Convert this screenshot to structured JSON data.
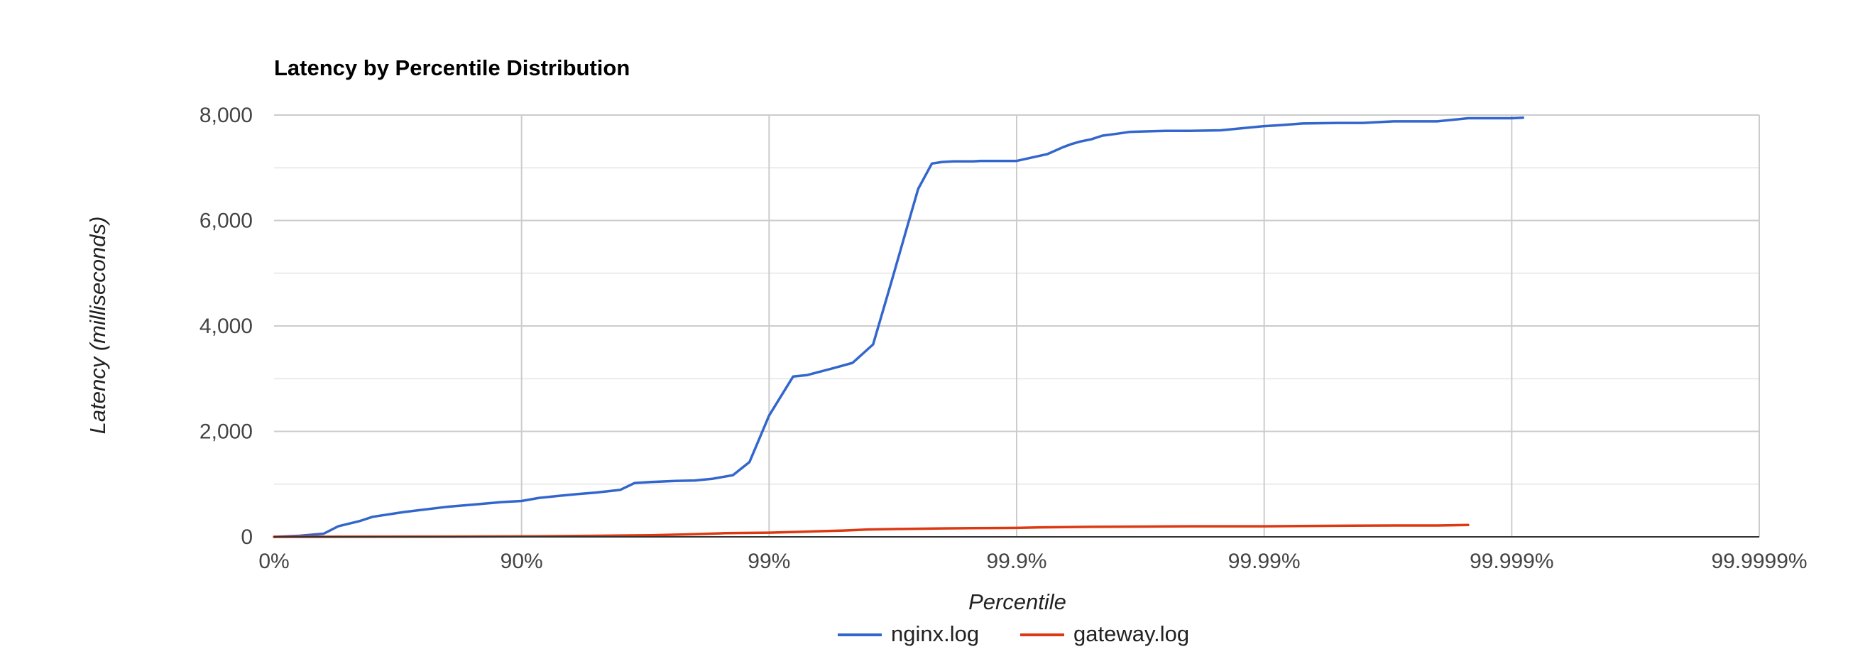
{
  "chart_data": {
    "type": "line",
    "title": "Latency by Percentile Distribution",
    "xlabel": "Percentile",
    "ylabel": "Latency (milliseconds)",
    "x_scale": "log-nines",
    "x_tick_labels": [
      "0%",
      "90%",
      "99%",
      "99.9%",
      "99.99%",
      "99.999%",
      "99.9999%"
    ],
    "x_tick_values": [
      0,
      90,
      99,
      99.9,
      99.99,
      99.999,
      99.9999
    ],
    "ylim": [
      0,
      8000
    ],
    "y_ticks": [
      0,
      2000,
      4000,
      6000,
      8000
    ],
    "y_tick_labels": [
      "0",
      "2,000",
      "4,000",
      "6,000",
      "8,000"
    ],
    "grid": true,
    "legend_position": "bottom",
    "series": [
      {
        "name": "nginx.log",
        "color": "#3366cc",
        "x": [
          0,
          21.0,
          37.0,
          45.0,
          55.0,
          60.0,
          70.0,
          80.0,
          85.0,
          88.0,
          90.0,
          91.5,
          93.0,
          94.0,
          95.0,
          96.0,
          96.5,
          97.0,
          97.6,
          98.0,
          98.3,
          98.6,
          98.8,
          99.0,
          99.2,
          99.3,
          99.45,
          99.54,
          99.62,
          99.68,
          99.72,
          99.75,
          99.78,
          99.8,
          99.82,
          99.84,
          99.85,
          99.86,
          99.87,
          99.9,
          99.925,
          99.935,
          99.94,
          99.945,
          99.95,
          99.955,
          99.96,
          99.965,
          99.97,
          99.975,
          99.98,
          99.985,
          99.99,
          99.9915,
          99.993,
          99.995,
          99.996,
          99.997,
          99.998,
          99.9985,
          99.999,
          99.9991
        ],
        "values": [
          0,
          20,
          60,
          200,
          300,
          380,
          470,
          570,
          620,
          660,
          680,
          740,
          780,
          810,
          840,
          890,
          1020,
          1040,
          1060,
          1070,
          1100,
          1170,
          1420,
          2300,
          3040,
          3070,
          3200,
          3300,
          3650,
          4850,
          5800,
          6600,
          7080,
          7110,
          7120,
          7120,
          7120,
          7130,
          7130,
          7130,
          7260,
          7390,
          7450,
          7500,
          7540,
          7610,
          7640,
          7680,
          7690,
          7700,
          7700,
          7710,
          7790,
          7810,
          7840,
          7850,
          7850,
          7880,
          7880,
          7940,
          7940,
          7950
        ]
      },
      {
        "name": "gateway.log",
        "color": "#dc3912",
        "x": [
          0,
          80.0,
          90.0,
          95.0,
          97.0,
          98.0,
          98.5,
          99.0,
          99.3,
          99.5,
          99.6,
          99.7,
          99.8,
          99.85,
          99.9,
          99.92,
          99.95,
          99.97,
          99.98,
          99.99,
          99.995,
          99.997,
          99.998,
          99.9985
        ],
        "values": [
          0,
          5,
          10,
          20,
          30,
          50,
          70,
          80,
          100,
          120,
          140,
          150,
          160,
          165,
          170,
          180,
          190,
          195,
          200,
          200,
          210,
          215,
          215,
          225
        ]
      }
    ]
  }
}
